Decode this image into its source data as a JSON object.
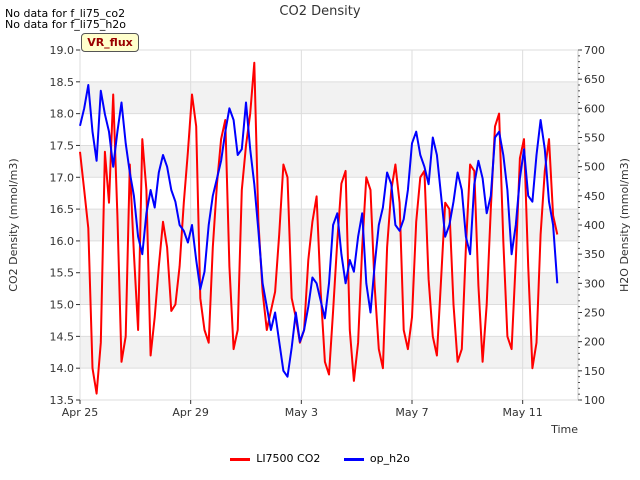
{
  "notes": [
    "No data for f_li75_co2",
    "No data for f_li75_h2o"
  ],
  "badge": "VR_flux",
  "chart_data": {
    "type": "line",
    "title": "CO2 Density",
    "xlabel": "Time",
    "ylabel_left": "CO2 Density (mmol/m3)",
    "ylabel_right": "H2O Density (mmol/m3)",
    "x_tick_labels": [
      "Apr 25",
      "Apr 29",
      "May 3",
      "May 7",
      "May 11"
    ],
    "x_range_days": [
      0,
      18
    ],
    "ylim_left": [
      13.5,
      19.0
    ],
    "ylim_right": [
      100,
      700
    ],
    "y_ticks_left": [
      "13.5",
      "14.0",
      "14.5",
      "15.0",
      "15.5",
      "16.0",
      "16.5",
      "17.0",
      "17.5",
      "18.0",
      "18.5",
      "19.0"
    ],
    "y_ticks_right": [
      "100",
      "150",
      "200",
      "250",
      "300",
      "350",
      "400",
      "450",
      "500",
      "550",
      "600",
      "650",
      "700"
    ],
    "legend_position": "bottom-center",
    "series": [
      {
        "name": "LI7500 CO2",
        "axis": "left",
        "color": "#ff0000",
        "x": [
          0.0,
          0.15,
          0.3,
          0.45,
          0.6,
          0.75,
          0.9,
          1.05,
          1.2,
          1.35,
          1.5,
          1.65,
          1.8,
          1.95,
          2.1,
          2.25,
          2.4,
          2.55,
          2.7,
          2.85,
          3.0,
          3.15,
          3.3,
          3.45,
          3.6,
          3.75,
          3.9,
          4.05,
          4.2,
          4.35,
          4.5,
          4.65,
          4.8,
          4.95,
          5.1,
          5.25,
          5.4,
          5.55,
          5.7,
          5.85,
          6.0,
          6.15,
          6.3,
          6.45,
          6.6,
          6.75,
          6.9,
          7.05,
          7.2,
          7.35,
          7.5,
          7.65,
          7.8,
          7.95,
          8.1,
          8.25,
          8.4,
          8.55,
          8.7,
          8.85,
          9.0,
          9.15,
          9.3,
          9.45,
          9.6,
          9.75,
          9.9,
          10.05,
          10.2,
          10.35,
          10.5,
          10.65,
          10.8,
          10.95,
          11.1,
          11.25,
          11.4,
          11.55,
          11.7,
          11.85,
          12.0,
          12.15,
          12.3,
          12.45,
          12.6,
          12.75,
          12.9,
          13.05,
          13.2,
          13.35,
          13.5,
          13.65,
          13.8,
          13.95,
          14.1,
          14.25,
          14.4,
          14.55,
          14.7,
          14.85,
          15.0,
          15.15,
          15.3,
          15.45,
          15.6,
          15.75,
          15.9,
          16.05,
          16.2,
          16.35,
          16.5,
          16.65,
          16.8,
          16.95,
          17.1,
          17.25
        ],
        "values": [
          17.4,
          16.8,
          16.2,
          14.0,
          13.6,
          14.4,
          17.4,
          16.6,
          18.3,
          16.4,
          14.1,
          14.5,
          17.2,
          15.8,
          14.6,
          17.6,
          16.8,
          14.2,
          14.8,
          15.6,
          16.3,
          15.9,
          14.9,
          15.0,
          15.6,
          16.6,
          17.4,
          18.3,
          17.8,
          15.1,
          14.6,
          14.4,
          15.9,
          16.9,
          17.6,
          17.9,
          15.6,
          14.3,
          14.6,
          16.8,
          17.5,
          18.0,
          18.8,
          16.3,
          15.2,
          14.6,
          14.9,
          15.2,
          16.1,
          17.2,
          17.0,
          15.1,
          14.8,
          14.4,
          14.6,
          15.7,
          16.3,
          16.7,
          15.2,
          14.1,
          13.9,
          14.9,
          16.0,
          16.9,
          17.1,
          14.6,
          13.8,
          14.4,
          15.9,
          17.0,
          16.8,
          15.3,
          14.3,
          14.0,
          15.9,
          16.8,
          17.2,
          16.6,
          14.6,
          14.3,
          14.8,
          16.3,
          17.0,
          17.1,
          15.4,
          14.5,
          14.2,
          15.4,
          16.6,
          16.5,
          15.0,
          14.1,
          14.3,
          15.9,
          17.2,
          17.1,
          15.3,
          14.1,
          15.0,
          16.5,
          17.8,
          18.0,
          16.0,
          14.5,
          14.3,
          15.7,
          17.3,
          17.6,
          15.6,
          14.0,
          14.4,
          16.1,
          17.1,
          17.6,
          16.4,
          16.1
        ]
      },
      {
        "name": "op_h2o",
        "axis": "right",
        "color": "#0000ff",
        "x": [
          0.0,
          0.15,
          0.3,
          0.45,
          0.6,
          0.75,
          0.9,
          1.05,
          1.2,
          1.35,
          1.5,
          1.65,
          1.8,
          1.95,
          2.1,
          2.25,
          2.4,
          2.55,
          2.7,
          2.85,
          3.0,
          3.15,
          3.3,
          3.45,
          3.6,
          3.75,
          3.9,
          4.05,
          4.2,
          4.35,
          4.5,
          4.65,
          4.8,
          4.95,
          5.1,
          5.25,
          5.4,
          5.55,
          5.7,
          5.85,
          6.0,
          6.15,
          6.3,
          6.45,
          6.6,
          6.75,
          6.9,
          7.05,
          7.2,
          7.35,
          7.5,
          7.65,
          7.8,
          7.95,
          8.1,
          8.25,
          8.4,
          8.55,
          8.7,
          8.85,
          9.0,
          9.15,
          9.3,
          9.45,
          9.6,
          9.75,
          9.9,
          10.05,
          10.2,
          10.35,
          10.5,
          10.65,
          10.8,
          10.95,
          11.1,
          11.25,
          11.4,
          11.55,
          11.7,
          11.85,
          12.0,
          12.15,
          12.3,
          12.45,
          12.6,
          12.75,
          12.9,
          13.05,
          13.2,
          13.35,
          13.5,
          13.65,
          13.8,
          13.95,
          14.1,
          14.25,
          14.4,
          14.55,
          14.7,
          14.85,
          15.0,
          15.15,
          15.3,
          15.45,
          15.6,
          15.75,
          15.9,
          16.05,
          16.2,
          16.35,
          16.5,
          16.65,
          16.8,
          16.95,
          17.1,
          17.25
        ],
        "values": [
          570,
          600,
          640,
          560,
          510,
          630,
          590,
          560,
          500,
          560,
          610,
          540,
          490,
          450,
          380,
          350,
          420,
          460,
          430,
          490,
          520,
          500,
          460,
          440,
          400,
          390,
          370,
          400,
          340,
          290,
          320,
          400,
          450,
          480,
          510,
          560,
          600,
          580,
          520,
          530,
          610,
          530,
          470,
          390,
          300,
          260,
          220,
          250,
          200,
          150,
          140,
          190,
          250,
          200,
          220,
          260,
          310,
          300,
          270,
          240,
          300,
          400,
          420,
          350,
          300,
          340,
          320,
          380,
          420,
          300,
          250,
          330,
          400,
          430,
          490,
          470,
          400,
          390,
          410,
          460,
          540,
          560,
          520,
          500,
          470,
          550,
          520,
          450,
          380,
          400,
          440,
          490,
          460,
          380,
          350,
          470,
          510,
          480,
          420,
          450,
          550,
          560,
          520,
          460,
          350,
          400,
          480,
          530,
          450,
          440,
          520,
          580,
          530,
          440,
          400,
          300
        ]
      }
    ]
  }
}
